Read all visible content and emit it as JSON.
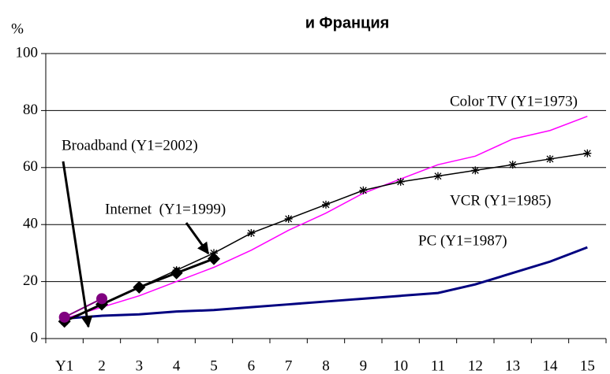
{
  "chart_data": {
    "type": "line",
    "title": "и Франция",
    "y_label": "%",
    "categories": [
      "Y1",
      "2",
      "3",
      "4",
      "5",
      "6",
      "7",
      "8",
      "9",
      "10",
      "11",
      "12",
      "13",
      "14",
      "15"
    ],
    "series": [
      {
        "name": "Color TV",
        "color": "#ff00ff",
        "values": [
          7,
          11,
          15,
          20,
          25,
          31,
          38,
          44,
          51,
          56,
          61,
          64,
          70,
          73,
          78
        ]
      },
      {
        "name": "VCR",
        "color": "#000000",
        "values": [
          6,
          12,
          18,
          24,
          30,
          37,
          42,
          47,
          52,
          55,
          57,
          59,
          61,
          63,
          65
        ]
      },
      {
        "name": "PC",
        "color": "#000080",
        "values": [
          7,
          8,
          8.5,
          9.5,
          10,
          11,
          12,
          13,
          14,
          15,
          16,
          19,
          23,
          27,
          32
        ]
      },
      {
        "name": "Internet",
        "color": "#000000",
        "values": [
          6,
          12,
          18,
          23,
          28,
          null,
          null,
          null,
          null,
          null,
          null,
          null,
          null,
          null,
          null
        ]
      },
      {
        "name": "Broadband",
        "color": "#800080",
        "values": [
          7.5,
          14,
          null,
          null,
          null,
          null,
          null,
          null,
          null,
          null,
          null,
          null,
          null,
          null,
          null
        ]
      }
    ],
    "annotations": [
      "Color TV (Y1=1973)",
      "VCR (Y1=1985)",
      "PC (Y1=1987)",
      "Internet  (Y1=1999)",
      "Broadband (Y1=2002)"
    ],
    "ylim": [
      0,
      100
    ],
    "yticks": [
      0,
      20,
      40,
      60,
      80,
      100
    ],
    "grid": true
  }
}
